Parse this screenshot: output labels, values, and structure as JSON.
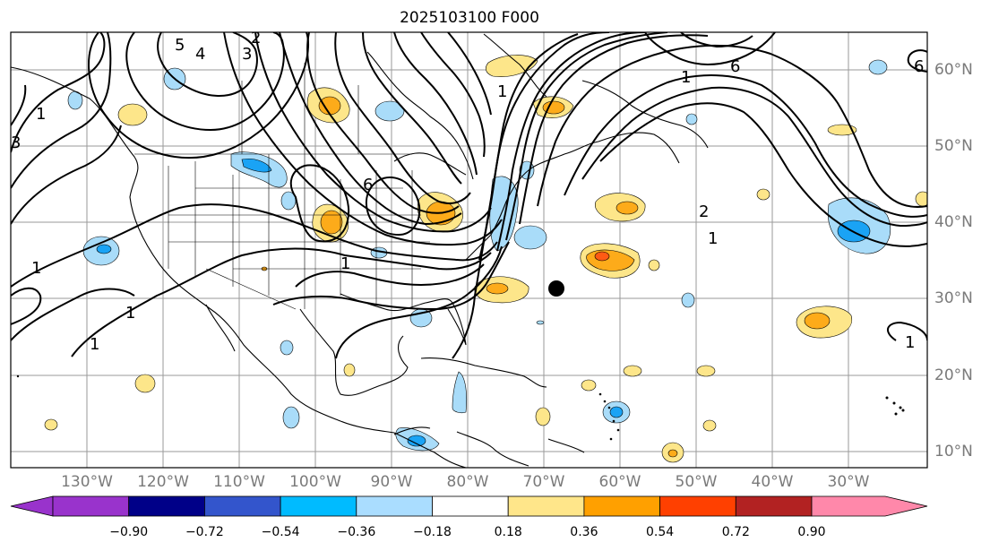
{
  "title": "2025103100 F000",
  "map": {
    "marker": "filled-circle",
    "lon_labels": [
      "130°W",
      "120°W",
      "110°W",
      "100°W",
      "90°W",
      "80°W",
      "70°W",
      "60°W",
      "50°W",
      "40°W",
      "30°W"
    ],
    "lat_labels": [
      "60°N",
      "50°N",
      "40°N",
      "30°N",
      "20°N",
      "10°N"
    ],
    "contour_labels": [
      "5",
      "4",
      "3",
      "2",
      "1",
      "6",
      "1",
      "2",
      "1",
      "6",
      "1",
      "1",
      "1",
      "1",
      "1",
      "6",
      "1",
      "3"
    ],
    "colors": {
      "contour": "#000000",
      "grid": "#9a9a9a",
      "neg_strong": "#1aa3f5",
      "neg_weak": "#a9dcf9",
      "pos_weak": "#fde68a",
      "pos_mid": "#fdab1a",
      "pos_strong": "#fe5a14"
    }
  },
  "colorbar": {
    "ticks": [
      "−0.90",
      "−0.72",
      "−0.54",
      "−0.36",
      "−0.18",
      "0.18",
      "0.36",
      "0.54",
      "0.72",
      "0.90"
    ],
    "colors": [
      "#9933cc",
      "#000088",
      "#3355cc",
      "#00bbff",
      "#aaddff",
      "#ffffff",
      "#ffe68a",
      "#ffa000",
      "#ff4000",
      "#b22222",
      "#ff88aa"
    ]
  }
}
